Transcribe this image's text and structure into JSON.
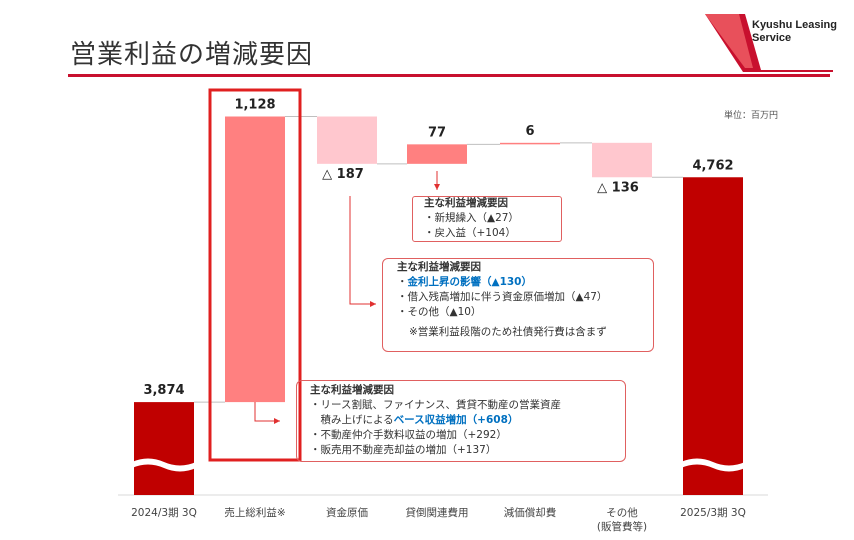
{
  "page": {
    "title": "営業利益の増減要因",
    "logo_line1": "Kyushu Leasing",
    "logo_line2": "Service",
    "unit": "単位：百万円"
  },
  "colors": {
    "dark_red": "#c00000",
    "increase": "#ff8080",
    "decrease": "#ffc7ce",
    "highlight_box": "#e02020",
    "blue_text": "#0070c0"
  },
  "chart_data": {
    "type": "waterfall",
    "categories": [
      "2024/3期 3Q",
      "売上総利益※",
      "資金原価",
      "貸倒関連費用",
      "減価償却費",
      "その他\n(販管費等)",
      "2025/3期 3Q"
    ],
    "category_lines": [
      [
        "2024/3期 3Q"
      ],
      [
        "売上総利益※"
      ],
      [
        "資金原価"
      ],
      [
        "貸倒関連費用"
      ],
      [
        "減価償却費"
      ],
      [
        "その他",
        "(販管費等)"
      ],
      [
        "2025/3期 3Q"
      ]
    ],
    "values": [
      3874,
      1128,
      -187,
      77,
      6,
      -136,
      4762
    ],
    "labels": [
      "3,874",
      "1,128",
      "△ 187",
      "77",
      "6",
      "△ 136",
      "4,762"
    ],
    "kinds": [
      "total",
      "increase",
      "decrease",
      "increase",
      "increase",
      "decrease",
      "total"
    ],
    "axis_break": true,
    "highlighted_category": "売上総利益※"
  },
  "notes": {
    "bad_debt": {
      "heading": "主な利益増減要因",
      "lines": [
        "・新規繰入（▲27）",
        "・戻入益（+104）"
      ]
    },
    "funding": {
      "heading": "主な利益増減要因",
      "line1_prefix": "・",
      "line1_highlight": "金利上昇の影響（▲130）",
      "line2": "・借入残高増加に伴う資金原価増加（▲47）",
      "line3": "・その他（▲10）",
      "footnote": "※営業利益段階のため社債発行費は含まず"
    },
    "gross_profit": {
      "heading": "主な利益増減要因",
      "line1": "・リース割賦、ファイナンス、賃貸不動産の営業資産",
      "line2_prefix": "　積み上げによる",
      "line2_highlight": "ベース収益増加（+608）",
      "line3": "・不動産仲介手数料収益の増加（+292）",
      "line4": "・販売用不動産売却益の増加（+137）"
    }
  }
}
